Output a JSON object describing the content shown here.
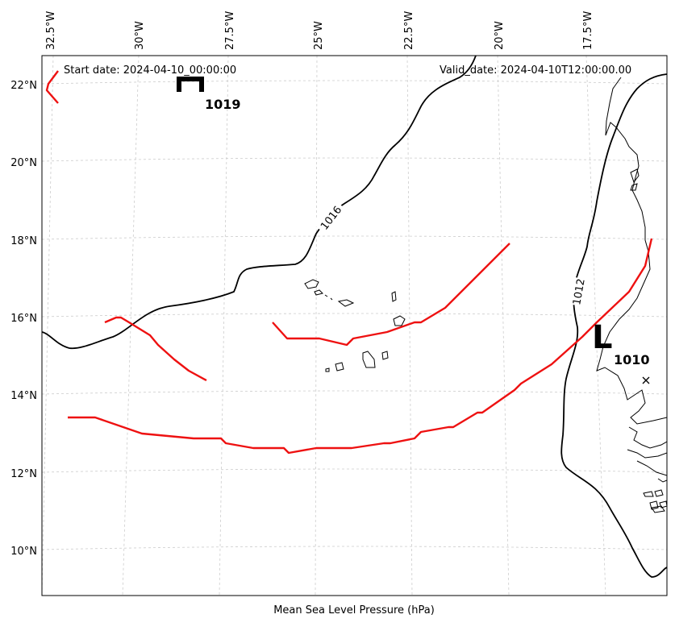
{
  "map": {
    "start_date": "Start date: 2024-04-10_00:00:00",
    "valid_date": "Valid_date: 2024-04-10T12:00:00.00",
    "caption": "Mean Sea Level Pressure (hPa)",
    "lon_ticks": [
      "32.5°W",
      "30°W",
      "27.5°W",
      "25°W",
      "22.5°W",
      "20°W",
      "17.5°W"
    ],
    "lat_ticks": [
      "22°N",
      "20°N",
      "18°N",
      "16°N",
      "14°N",
      "12°N",
      "10°N"
    ],
    "extent": {
      "lon_min": -33.0,
      "lon_max": -15.8,
      "lat_min": 9.0,
      "lat_max": 22.8
    },
    "pressure_centers": [
      {
        "type": "H",
        "value": "1019",
        "lon": -28.3,
        "lat": 22.0
      },
      {
        "type": "L",
        "value": "1010",
        "lon": -16.9,
        "lat": 15.5
      }
    ],
    "contours": [
      {
        "level": "1016",
        "label_lon": -24.7,
        "label_lat": 18.4
      },
      {
        "level": "1012",
        "label_lon": -17.6,
        "label_lat": 16.3
      }
    ],
    "colors": {
      "track": "#ee1111",
      "contour": "#000000",
      "grid": "#cccccc",
      "land": "#000000"
    }
  }
}
